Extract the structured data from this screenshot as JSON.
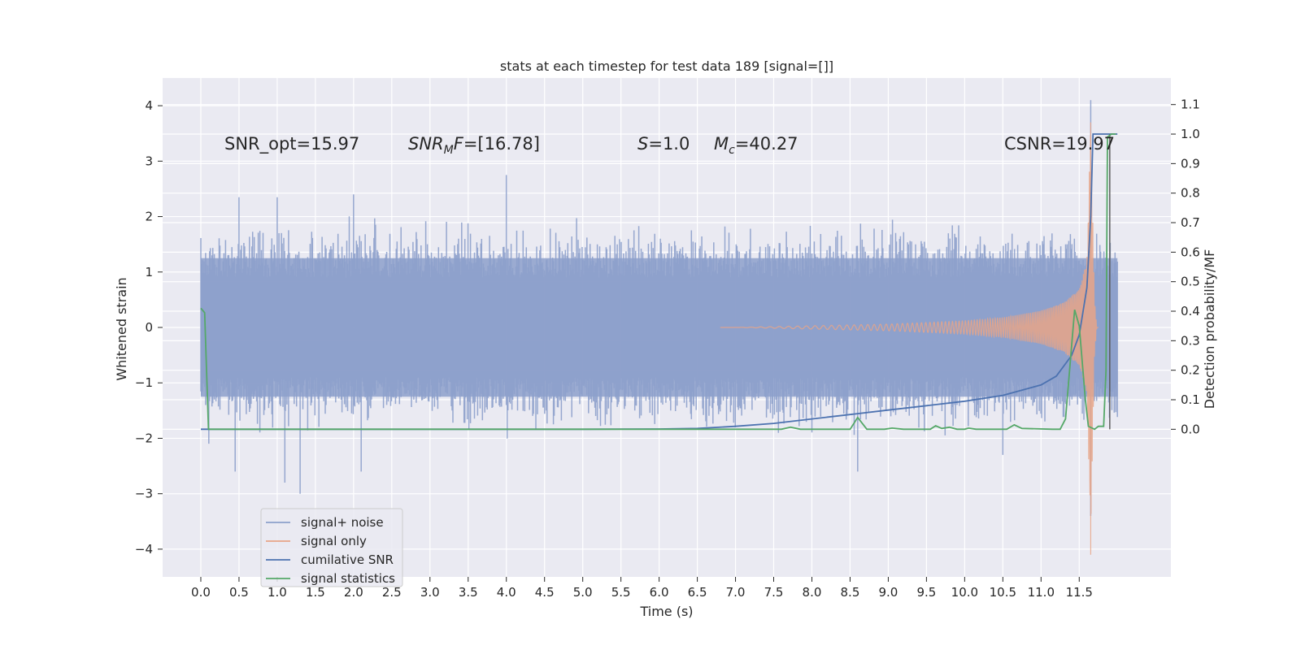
{
  "chart_data": {
    "type": "line",
    "title": "stats at each timestep for test data 189 [signal=[]]",
    "xlabel": "Time (s)",
    "ylabel": "Whitened strain",
    "ylabel_right": "Detection probability/MF",
    "xlim": [
      -0.5,
      12.7
    ],
    "ylim": [
      -4.5,
      4.5
    ],
    "ylim_right": [
      -0.5,
      1.19
    ],
    "x_ticks": [
      "0.0",
      "0.5",
      "1.0",
      "1.5",
      "2.0",
      "2.5",
      "3.0",
      "3.5",
      "4.0",
      "4.5",
      "5.0",
      "5.5",
      "6.0",
      "6.5",
      "7.0",
      "7.5",
      "8.0",
      "8.5",
      "9.0",
      "9.5",
      "10.0",
      "10.5",
      "11.0",
      "11.5"
    ],
    "y_ticks": [
      "4",
      "3",
      "2",
      "1",
      "0",
      "−1",
      "−2",
      "−3",
      "−4"
    ],
    "y_ticks_right": [
      "1.1",
      "1.0",
      "0.9",
      "0.8",
      "0.7",
      "0.6",
      "0.5",
      "0.4",
      "0.3",
      "0.2",
      "0.1",
      "0.0"
    ],
    "grid": true,
    "legend_position": "lower-left",
    "annotations": {
      "snr_opt": "SNR_opt=15.97",
      "snr_mf_sym": "SNR",
      "snr_mf_sub": "M",
      "snr_mf_f": "F",
      "snr_mf_val": "=[16.78]",
      "s_sym": "S",
      "s_val": "=1.0",
      "mc_sym": "M",
      "mc_sub": "c",
      "mc_val": "=40.27",
      "csnr": "CSNR=19.97"
    },
    "series": [
      {
        "name": "signal+ noise",
        "color": "#8da0cb",
        "axis": "left",
        "style": "noise envelope, amplitude ~1.3 to 2.5",
        "peaks": [
          [
            0.5,
            2.35
          ],
          [
            1.0,
            2.35
          ],
          [
            2.0,
            2.4
          ],
          [
            4.0,
            2.75
          ],
          [
            11.65,
            4.1
          ]
        ],
        "troughs": [
          [
            0.45,
            -2.6
          ],
          [
            1.1,
            -2.8
          ],
          [
            1.3,
            -3.0
          ],
          [
            2.1,
            -2.6
          ],
          [
            8.6,
            -2.6
          ],
          [
            10.5,
            -2.3
          ],
          [
            11.65,
            -3.4
          ]
        ]
      },
      {
        "name": "signal only",
        "color": "#e8a487",
        "axis": "left",
        "envelope": [
          [
            0.0,
            0.0
          ],
          [
            7.0,
            0.0
          ],
          [
            8.0,
            0.03
          ],
          [
            9.0,
            0.06
          ],
          [
            10.0,
            0.12
          ],
          [
            10.5,
            0.18
          ],
          [
            11.0,
            0.3
          ],
          [
            11.3,
            0.45
          ],
          [
            11.5,
            0.7
          ],
          [
            11.6,
            1.2
          ],
          [
            11.65,
            3.7
          ],
          [
            11.7,
            0.5
          ],
          [
            11.73,
            0.0
          ]
        ]
      },
      {
        "name": "cumilative SNR",
        "color": "#4c72b0",
        "axis": "right",
        "points": [
          [
            0.0,
            0.0
          ],
          [
            5.0,
            0.0
          ],
          [
            6.0,
            0.001
          ],
          [
            6.5,
            0.003
          ],
          [
            7.0,
            0.01
          ],
          [
            7.5,
            0.02
          ],
          [
            8.0,
            0.035
          ],
          [
            8.5,
            0.05
          ],
          [
            9.0,
            0.065
          ],
          [
            9.5,
            0.08
          ],
          [
            10.0,
            0.095
          ],
          [
            10.5,
            0.115
          ],
          [
            11.0,
            0.15
          ],
          [
            11.2,
            0.18
          ],
          [
            11.4,
            0.25
          ],
          [
            11.5,
            0.32
          ],
          [
            11.6,
            0.48
          ],
          [
            11.65,
            0.72
          ],
          [
            11.68,
            1.0
          ],
          [
            12.0,
            1.0
          ]
        ]
      },
      {
        "name": "signal statistics",
        "color": "#55a868",
        "axis": "right",
        "points": [
          [
            0.0,
            0.41
          ],
          [
            0.05,
            0.395
          ],
          [
            0.1,
            0.0
          ],
          [
            4.5,
            0.0
          ],
          [
            7.6,
            0.0
          ],
          [
            7.72,
            0.007
          ],
          [
            7.85,
            0.0
          ],
          [
            8.5,
            0.0
          ],
          [
            8.6,
            0.04
          ],
          [
            8.72,
            0.0
          ],
          [
            8.95,
            0.0
          ],
          [
            9.05,
            0.004
          ],
          [
            9.2,
            0.0
          ],
          [
            9.55,
            0.0
          ],
          [
            9.62,
            0.012
          ],
          [
            9.7,
            0.003
          ],
          [
            9.8,
            0.007
          ],
          [
            9.9,
            0.0
          ],
          [
            10.0,
            0.0
          ],
          [
            10.05,
            0.004
          ],
          [
            10.15,
            0.0
          ],
          [
            10.55,
            0.0
          ],
          [
            10.65,
            0.015
          ],
          [
            10.75,
            0.003
          ],
          [
            11.15,
            0.0
          ],
          [
            11.25,
            0.0
          ],
          [
            11.32,
            0.035
          ],
          [
            11.44,
            0.405
          ],
          [
            11.5,
            0.35
          ],
          [
            11.58,
            0.1
          ],
          [
            11.62,
            0.01
          ],
          [
            11.7,
            0.0
          ],
          [
            11.75,
            0.01
          ],
          [
            11.82,
            0.01
          ],
          [
            11.85,
            0.2
          ],
          [
            11.87,
            0.99
          ],
          [
            11.92,
            1.0
          ],
          [
            11.98,
            1.0
          ]
        ]
      }
    ]
  }
}
